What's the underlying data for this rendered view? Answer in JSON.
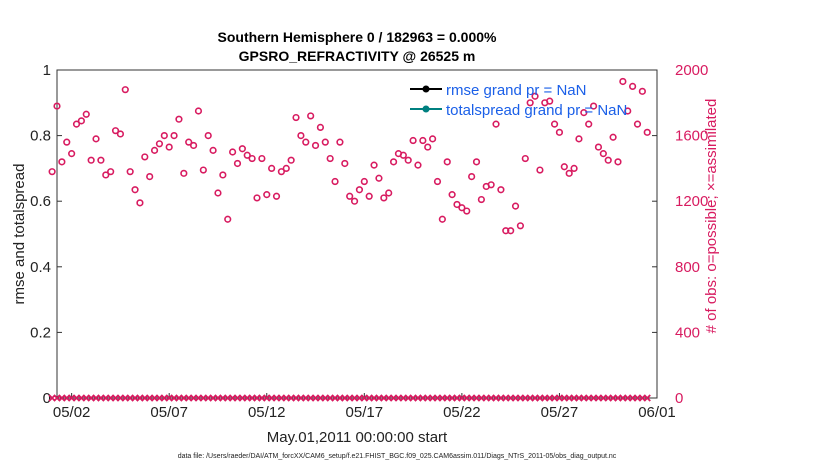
{
  "chart_data": {
    "type": "scatter",
    "title": "Southern Hemisphere 0 / 182963 = 0.000%",
    "subtitle": "GPSRO_REFRACTIVITY @ 26525 m",
    "xlabel": "May.01,2011 00:00:00 start",
    "ylabel_left": "rmse and totalspread",
    "ylabel_right": "# of obs: o=possible; ×=assimilated",
    "x_range_days": [
      0.25,
      31
    ],
    "ylim_left": [
      0,
      1
    ],
    "ylim_right": [
      0,
      2000
    ],
    "x_ticks": [
      {
        "day": 1,
        "label": "05/02"
      },
      {
        "day": 6,
        "label": "05/07"
      },
      {
        "day": 11,
        "label": "05/12"
      },
      {
        "day": 16,
        "label": "05/17"
      },
      {
        "day": 21,
        "label": "05/22"
      },
      {
        "day": 26,
        "label": "05/27"
      },
      {
        "day": 31,
        "label": "06/01"
      }
    ],
    "y_ticks_left": [
      "0",
      "0.2",
      "0.4",
      "0.6",
      "0.8",
      "1"
    ],
    "y_ticks_right": [
      "0",
      "400",
      "800",
      "1200",
      "1600",
      "2000"
    ],
    "legend": [
      "rmse grand pr = NaN",
      "totalspread grand pr = NaN"
    ],
    "legend_position": "top-right",
    "colors": {
      "rmse": "#000000",
      "totalspread": "#008080",
      "obs": "#d81b60",
      "legend_text": "#1a5fe8"
    },
    "series": [
      {
        "name": "possible obs",
        "marker": "circle",
        "axis": "right",
        "points": [
          [
            0.0,
            1380
          ],
          [
            0.25,
            1780
          ],
          [
            0.5,
            1440
          ],
          [
            0.75,
            1560
          ],
          [
            1.0,
            1490
          ],
          [
            1.25,
            1670
          ],
          [
            1.5,
            1690
          ],
          [
            1.75,
            1730
          ],
          [
            2.0,
            1450
          ],
          [
            2.25,
            1580
          ],
          [
            2.5,
            1450
          ],
          [
            2.75,
            1360
          ],
          [
            3.0,
            1380
          ],
          [
            3.25,
            1630
          ],
          [
            3.5,
            1610
          ],
          [
            3.75,
            1880
          ],
          [
            4.0,
            1380
          ],
          [
            4.25,
            1270
          ],
          [
            4.5,
            1190
          ],
          [
            4.75,
            1470
          ],
          [
            5.0,
            1350
          ],
          [
            5.25,
            1510
          ],
          [
            5.5,
            1550
          ],
          [
            5.75,
            1600
          ],
          [
            6.0,
            1530
          ],
          [
            6.25,
            1600
          ],
          [
            6.5,
            1700
          ],
          [
            6.75,
            1370
          ],
          [
            7.0,
            1560
          ],
          [
            7.25,
            1540
          ],
          [
            7.5,
            1750
          ],
          [
            7.75,
            1390
          ],
          [
            8.0,
            1600
          ],
          [
            8.25,
            1510
          ],
          [
            8.5,
            1250
          ],
          [
            8.75,
            1360
          ],
          [
            9.0,
            1090
          ],
          [
            9.25,
            1500
          ],
          [
            9.5,
            1430
          ],
          [
            9.75,
            1520
          ],
          [
            10.0,
            1480
          ],
          [
            10.25,
            1460
          ],
          [
            10.5,
            1220
          ],
          [
            10.75,
            1460
          ],
          [
            11.0,
            1240
          ],
          [
            11.25,
            1400
          ],
          [
            11.5,
            1230
          ],
          [
            11.75,
            1380
          ],
          [
            12.0,
            1400
          ],
          [
            12.25,
            1450
          ],
          [
            12.5,
            1710
          ],
          [
            12.75,
            1600
          ],
          [
            13.0,
            1560
          ],
          [
            13.25,
            1720
          ],
          [
            13.5,
            1540
          ],
          [
            13.75,
            1650
          ],
          [
            14.0,
            1560
          ],
          [
            14.25,
            1460
          ],
          [
            14.5,
            1320
          ],
          [
            14.75,
            1560
          ],
          [
            15.0,
            1430
          ],
          [
            15.25,
            1230
          ],
          [
            15.5,
            1200
          ],
          [
            15.75,
            1270
          ],
          [
            16.0,
            1320
          ],
          [
            16.25,
            1230
          ],
          [
            16.5,
            1420
          ],
          [
            16.75,
            1340
          ],
          [
            17.0,
            1220
          ],
          [
            17.25,
            1250
          ],
          [
            17.5,
            1440
          ],
          [
            17.75,
            1490
          ],
          [
            18.0,
            1480
          ],
          [
            18.25,
            1450
          ],
          [
            18.5,
            1570
          ],
          [
            18.75,
            1420
          ],
          [
            19.0,
            1570
          ],
          [
            19.25,
            1530
          ],
          [
            19.5,
            1580
          ],
          [
            19.75,
            1320
          ],
          [
            20.0,
            1090
          ],
          [
            20.25,
            1440
          ],
          [
            20.5,
            1240
          ],
          [
            20.75,
            1180
          ],
          [
            21.0,
            1160
          ],
          [
            21.25,
            1140
          ],
          [
            21.5,
            1350
          ],
          [
            21.75,
            1440
          ],
          [
            22.0,
            1210
          ],
          [
            22.25,
            1290
          ],
          [
            22.5,
            1300
          ],
          [
            22.75,
            1670
          ],
          [
            23.0,
            1270
          ],
          [
            23.25,
            1020
          ],
          [
            23.5,
            1020
          ],
          [
            23.75,
            1170
          ],
          [
            24.0,
            1050
          ],
          [
            24.25,
            1460
          ],
          [
            24.5,
            1800
          ],
          [
            24.75,
            1840
          ],
          [
            25.0,
            1390
          ],
          [
            25.25,
            1800
          ],
          [
            25.5,
            1810
          ],
          [
            25.75,
            1670
          ],
          [
            26.0,
            1620
          ],
          [
            26.25,
            1410
          ],
          [
            26.5,
            1370
          ],
          [
            26.75,
            1400
          ],
          [
            27.0,
            1580
          ],
          [
            27.25,
            1740
          ],
          [
            27.5,
            1670
          ],
          [
            27.75,
            1780
          ],
          [
            28.0,
            1530
          ],
          [
            28.25,
            1490
          ],
          [
            28.5,
            1450
          ],
          [
            28.75,
            1590
          ],
          [
            29.0,
            1440
          ],
          [
            29.25,
            1930
          ],
          [
            29.5,
            1750
          ],
          [
            29.75,
            1900
          ],
          [
            30.0,
            1670
          ],
          [
            30.25,
            1870
          ],
          [
            30.5,
            1620
          ]
        ]
      },
      {
        "name": "assimilated obs",
        "marker": "x",
        "axis": "right",
        "points_count": 123,
        "value": 0
      }
    ]
  }
}
